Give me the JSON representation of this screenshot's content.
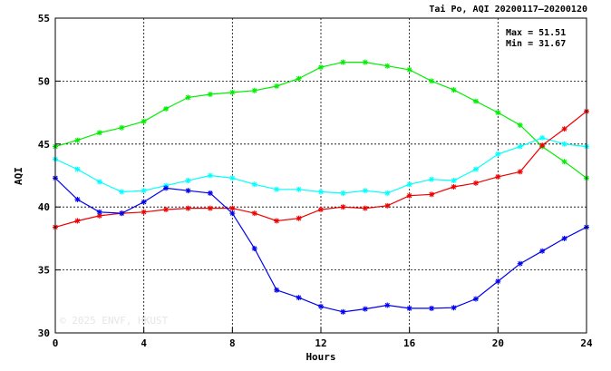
{
  "chart_data": {
    "type": "line",
    "title": "Tai Po, AQI 20200117–20200120",
    "xlabel": "Hours",
    "ylabel": "AQI",
    "xlim": [
      0,
      24
    ],
    "ylim": [
      30,
      55
    ],
    "xticks": [
      "0",
      "4",
      "8",
      "12",
      "16",
      "20",
      "24"
    ],
    "yticks": [
      "30",
      "35",
      "40",
      "45",
      "50",
      "55"
    ],
    "grid": true,
    "x": [
      0,
      1,
      2,
      3,
      4,
      5,
      6,
      7,
      8,
      9,
      10,
      11,
      12,
      13,
      14,
      15,
      16,
      17,
      18,
      19,
      20,
      21,
      22,
      23,
      24
    ],
    "series": [
      {
        "color": "#00ee00",
        "values": [
          44.8,
          45.3,
          45.9,
          46.3,
          46.8,
          47.8,
          48.7,
          48.95,
          49.1,
          49.25,
          49.6,
          50.2,
          51.1,
          51.5,
          51.5,
          51.2,
          50.9,
          50.0,
          49.3,
          48.4,
          47.5,
          46.5,
          44.8,
          43.6,
          42.3
        ]
      },
      {
        "color": "#00ffff",
        "values": [
          43.8,
          43.0,
          42.0,
          41.2,
          41.3,
          41.7,
          42.1,
          42.5,
          42.3,
          41.8,
          41.4,
          41.4,
          41.2,
          41.1,
          41.3,
          41.1,
          41.8,
          42.2,
          42.1,
          43.0,
          44.2,
          44.8,
          45.5,
          45.0,
          44.8
        ]
      },
      {
        "color": "#ee0000",
        "values": [
          38.4,
          38.9,
          39.3,
          39.5,
          39.6,
          39.8,
          39.9,
          39.9,
          39.9,
          39.5,
          38.9,
          39.1,
          39.8,
          40.0,
          39.9,
          40.1,
          40.9,
          41.0,
          41.6,
          41.9,
          42.4,
          42.8,
          44.9,
          46.2,
          47.6
        ]
      },
      {
        "color": "#0000ee",
        "values": [
          42.3,
          40.6,
          39.6,
          39.5,
          40.4,
          41.5,
          41.3,
          41.1,
          39.5,
          36.7,
          33.4,
          32.8,
          32.1,
          31.67,
          31.9,
          32.2,
          31.95,
          31.95,
          32.0,
          32.7,
          34.1,
          35.5,
          36.5,
          37.5,
          38.4
        ]
      }
    ],
    "annotations": {
      "max_label": "Max = 51.51",
      "min_label": "Min = 31.67",
      "watermark": "© 2025  ENVF, HKUST"
    }
  }
}
